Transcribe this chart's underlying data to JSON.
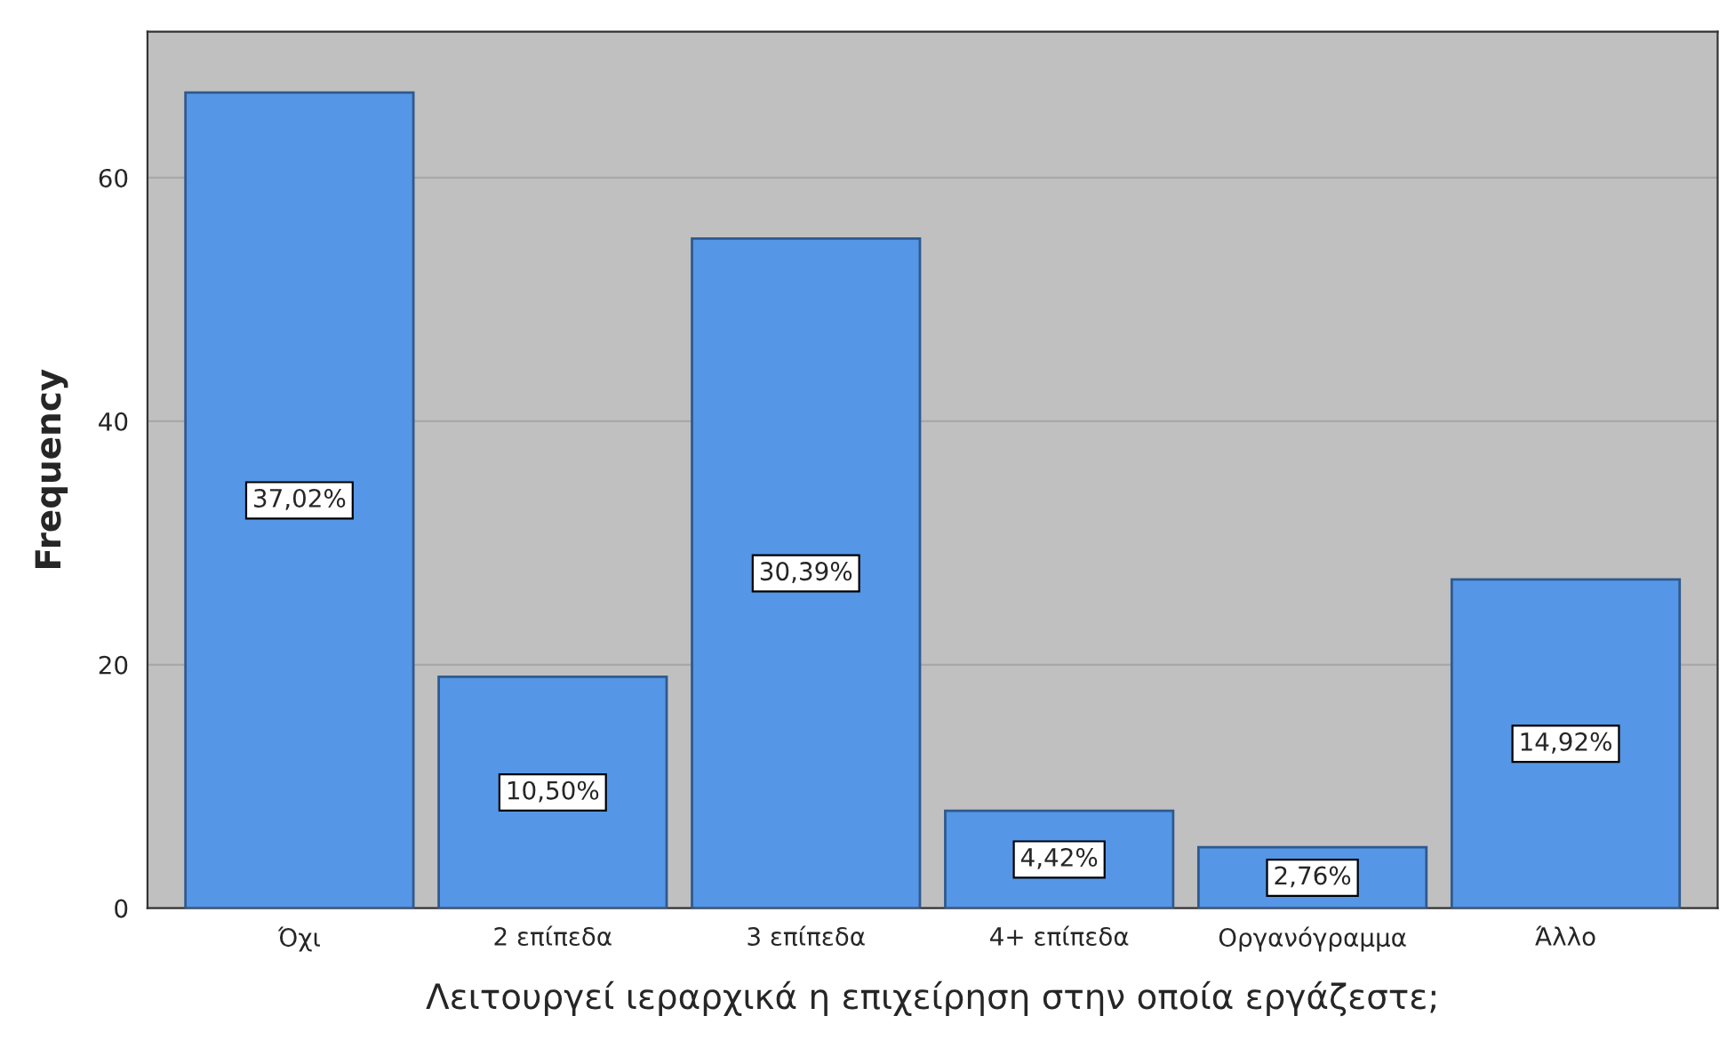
{
  "chart_data": {
    "type": "bar",
    "xlabel": "Λειτουργεί ιεραρχικά η επιχείρηση στην οποία εργάζεστε;",
    "ylabel": "Frequency",
    "categories": [
      "Όχι",
      "2 επίπεδα",
      "3 επίπεδα",
      "4+ επίπεδα",
      "Οργανόγραμμα",
      "Άλλο"
    ],
    "values": [
      67,
      19,
      55,
      8,
      5,
      27
    ],
    "annotations": [
      "37,02%",
      "10,50%",
      "30,39%",
      "4,42%",
      "2,76%",
      "14,92%"
    ],
    "color": "#5596e6",
    "ylim": [
      0,
      72
    ],
    "yticks": [
      0,
      20,
      40,
      60
    ],
    "grid": "y"
  }
}
